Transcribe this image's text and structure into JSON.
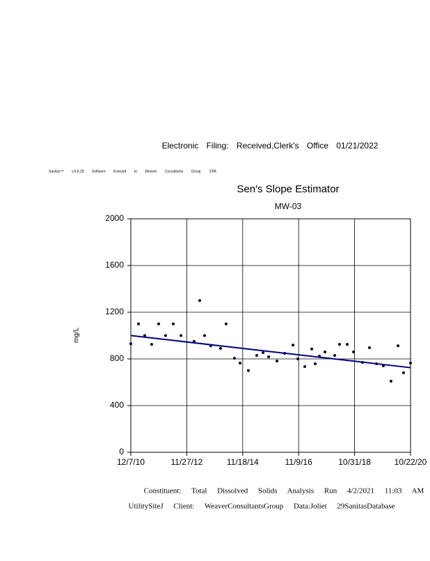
{
  "document": {
    "filing": "Electronic Filing: Received,Clerk's Office 01/21/2022",
    "software": "Sanitas™ v.9.6.28 Software licensed to Weaver Consultants Group. EPA",
    "footer_line1": "Constituent: Total Dissolved Solids Analysis Run 4/2/2021 11:03 AM",
    "footer_line2": "UtilitySiteJ Client: WeaverConsultantsGroup Data:Joliet 29SanitasDatabase"
  },
  "chart_data": {
    "type": "scatter",
    "title": "Sen's Slope Estimator",
    "subtitle": "MW-03",
    "y_label": "mg/L",
    "xlim": [
      0,
      3605
    ],
    "xticks": [
      {
        "value": 0,
        "label": "12/7/10"
      },
      {
        "value": 721,
        "label": "11/27/12"
      },
      {
        "value": 1442,
        "label": "11/18/14"
      },
      {
        "value": 2163,
        "label": "11/9/16"
      },
      {
        "value": 2884,
        "label": "10/31/18"
      },
      {
        "value": 3605,
        "label": "10/22/20"
      }
    ],
    "ylim": [
      0,
      2000
    ],
    "yticks": [
      0,
      400,
      800,
      1200,
      1600,
      2000
    ],
    "grid": true,
    "series": [
      {
        "color": "#000033",
        "x": [
          0,
          99,
          179,
          269,
          359,
          448,
          547,
          646,
          816,
          888,
          951,
          1031,
          1157,
          1228,
          1336,
          1408,
          1516,
          1623,
          1704,
          1776,
          1884,
          1982,
          2090,
          2153,
          2242,
          2332,
          2377,
          2431,
          2502,
          2628,
          2690,
          2789,
          2870,
          2986,
          3076,
          3166,
          3255,
          3354,
          3444,
          3515,
          3605
        ],
        "values": [
          930,
          1100,
          1000,
          925,
          1100,
          1000,
          1100,
          1000,
          950,
          1300,
          1000,
          913,
          890,
          1100,
          806,
          764,
          700,
          830,
          854,
          818,
          782,
          848,
          919,
          800,
          734,
          884,
          758,
          824,
          860,
          830,
          925,
          925,
          860,
          770,
          896,
          758,
          740,
          609,
          913,
          681,
          764
        ]
      }
    ],
    "trend_line": {
      "x": [
        0,
        3605
      ],
      "values": [
        1000,
        725
      ],
      "color": "#000080"
    }
  }
}
